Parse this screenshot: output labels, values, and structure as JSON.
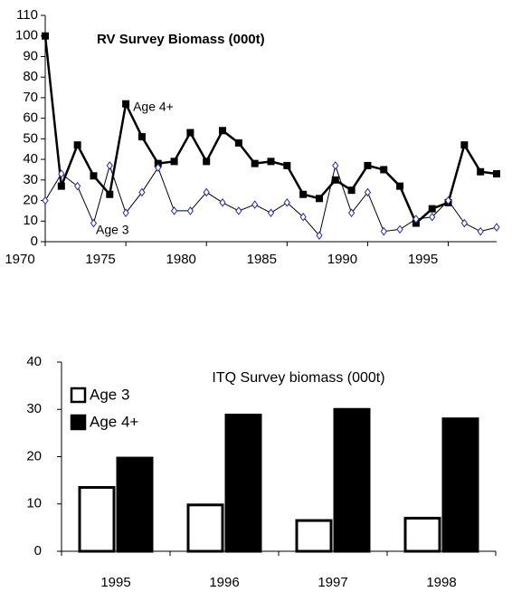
{
  "chart_data": [
    {
      "type": "line",
      "title": "RV Survey Biomass (000t)",
      "x": [
        1970,
        1971,
        1972,
        1973,
        1974,
        1975,
        1976,
        1977,
        1978,
        1979,
        1980,
        1981,
        1982,
        1983,
        1984,
        1985,
        1986,
        1987,
        1988,
        1989,
        1990,
        1991,
        1992,
        1993,
        1994,
        1995,
        1996,
        1997,
        1998
      ],
      "series": [
        {
          "name": "Age 4+",
          "color": "#000000",
          "values": [
            100,
            27,
            47,
            32,
            23,
            67,
            51,
            38,
            39,
            53,
            39,
            54,
            48,
            38,
            39,
            37,
            23,
            21,
            30,
            25,
            37,
            35,
            27,
            9,
            16,
            19,
            47,
            34,
            33
          ]
        },
        {
          "name": "Age 3",
          "color": "#1f2f9f",
          "values": [
            20,
            33,
            27,
            9,
            37,
            14,
            24,
            36,
            15,
            15,
            24,
            19,
            15,
            18,
            14,
            19,
            12,
            3,
            37,
            14,
            24,
            5,
            6,
            11,
            12,
            20,
            9,
            5,
            7
          ]
        }
      ],
      "xlim": [
        1970,
        1998
      ],
      "xticks": [
        1970,
        1975,
        1980,
        1985,
        1990,
        1995
      ],
      "ylim": [
        0,
        110
      ],
      "yticks": [
        0,
        10,
        20,
        30,
        40,
        50,
        60,
        70,
        80,
        90,
        100,
        110
      ]
    },
    {
      "type": "bar",
      "title": "ITQ Survey biomass (000t)",
      "categories": [
        "1995",
        "1996",
        "1997",
        "1998"
      ],
      "series": [
        {
          "name": "Age 3",
          "color": "#ffffff",
          "values": [
            13.5,
            9.8,
            6.5,
            7
          ]
        },
        {
          "name": "Age 4+",
          "color": "#000000",
          "values": [
            19.7,
            28.8,
            30,
            28
          ]
        }
      ],
      "ylim": [
        0,
        40
      ],
      "yticks": [
        0,
        10,
        20,
        30,
        40
      ],
      "legend": "upper-left"
    }
  ]
}
